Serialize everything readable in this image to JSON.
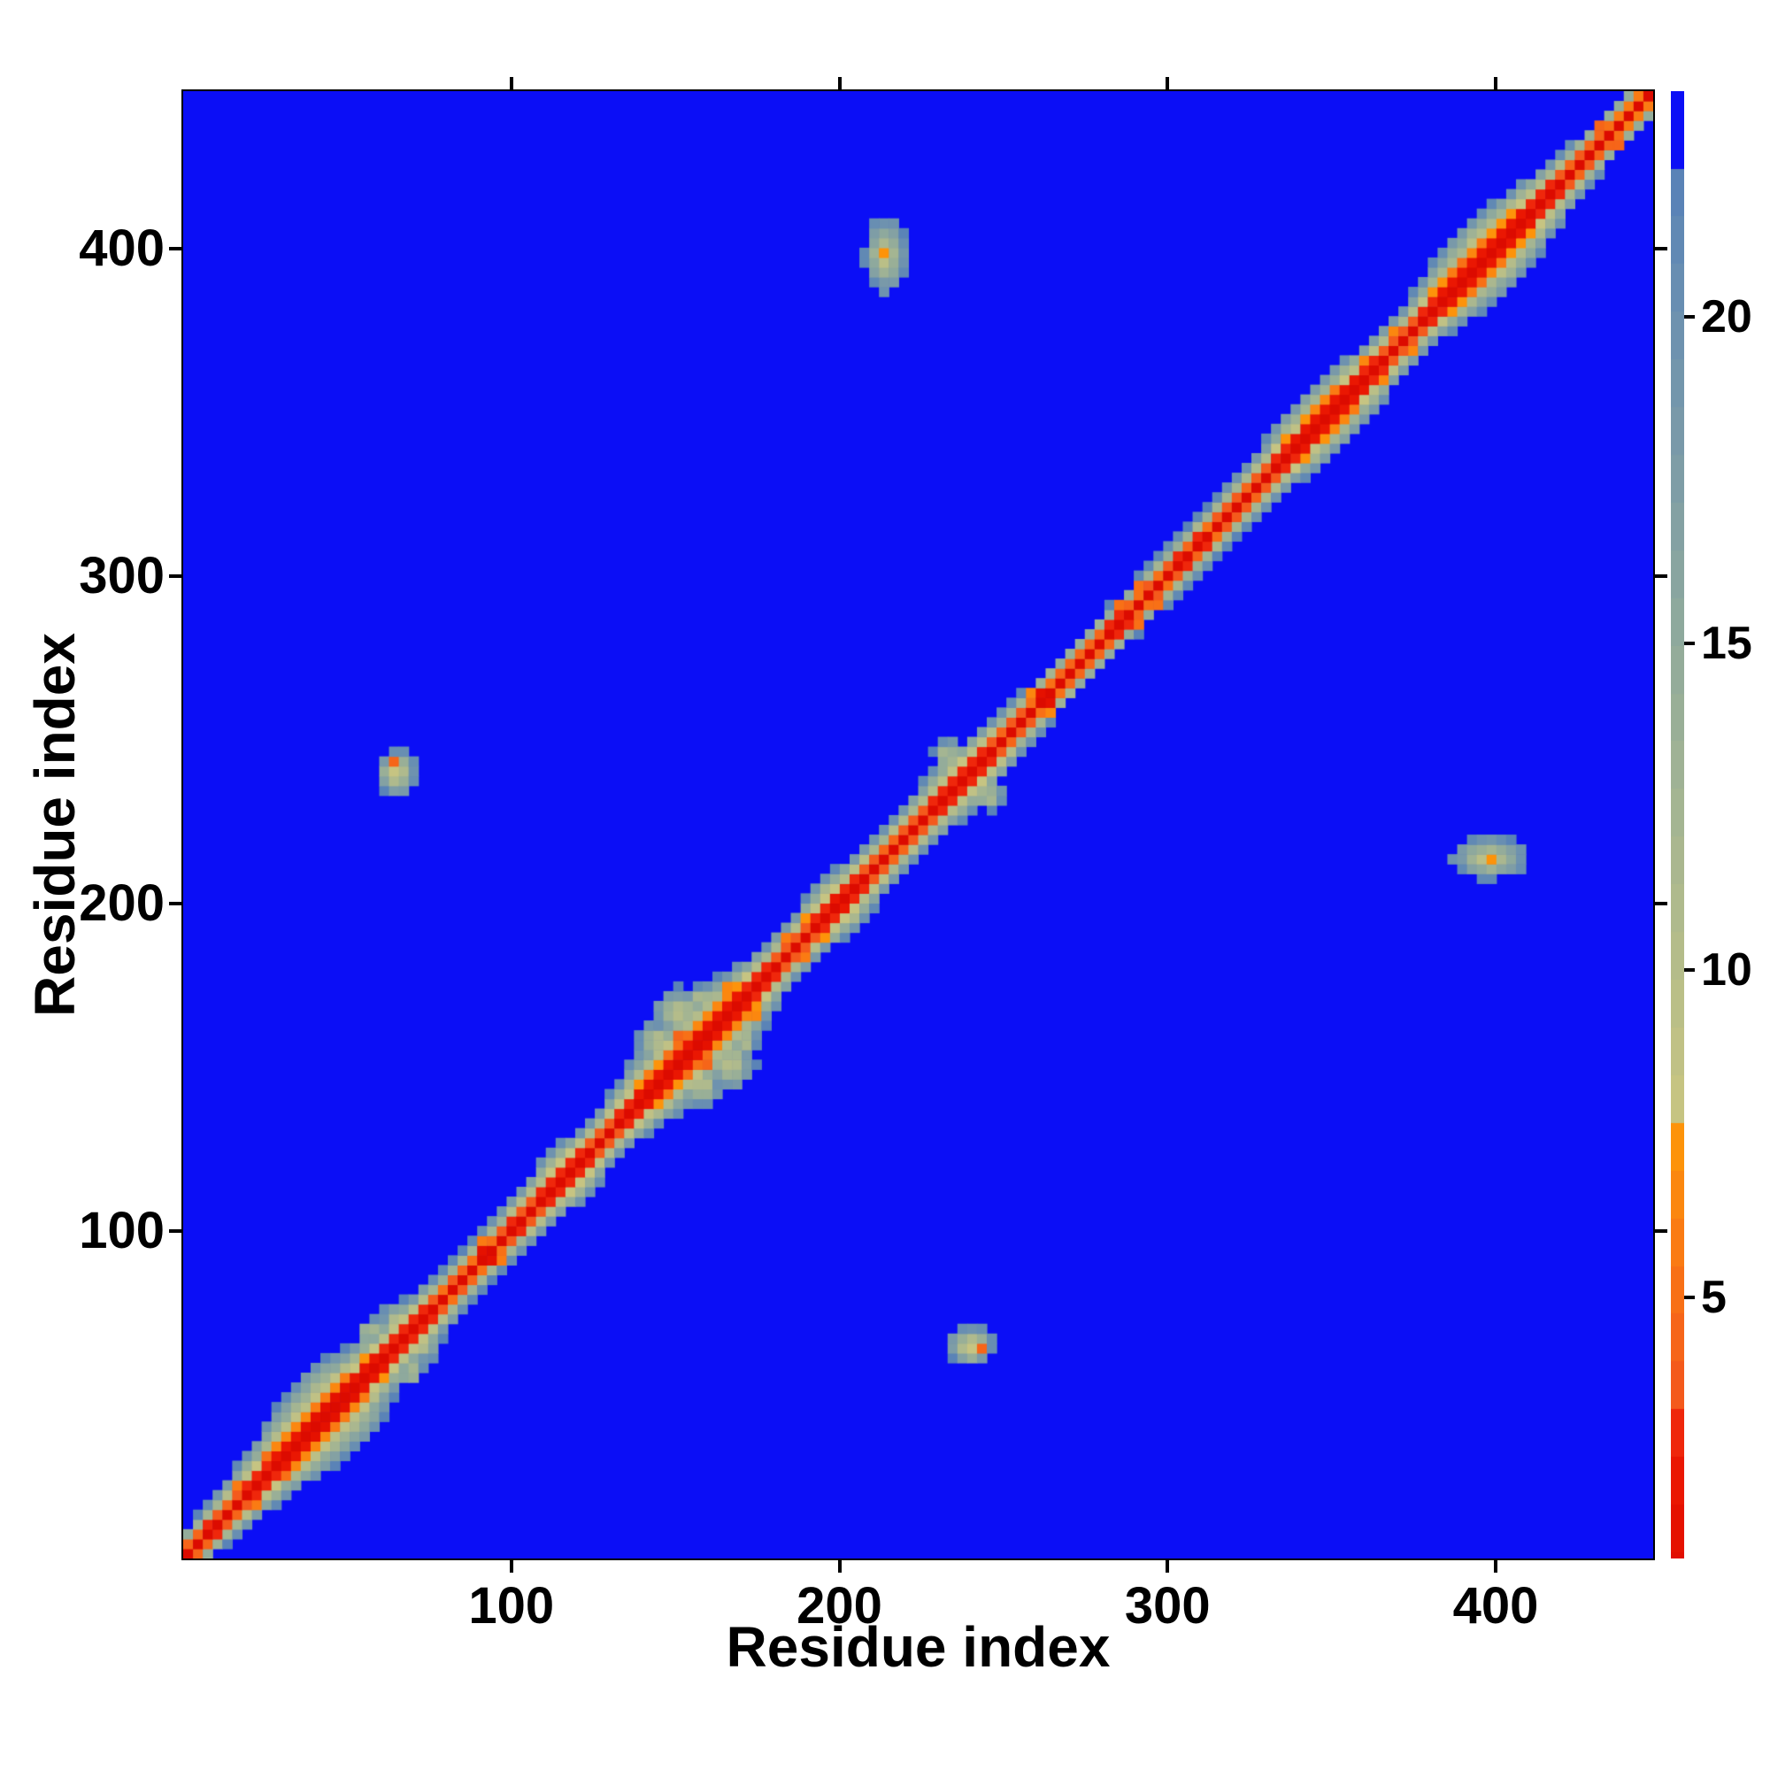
{
  "chart_data": {
    "type": "heatmap",
    "title": "",
    "xlabel": "Residue index",
    "ylabel": "Residue index",
    "x_range": [
      0,
      448
    ],
    "y_range": [
      0,
      448
    ],
    "x_ticks": [
      100,
      200,
      300,
      400
    ],
    "y_ticks": [
      100,
      200,
      300,
      400
    ],
    "grid_on": false,
    "legend": "colorbar-right",
    "value_max": 23.5,
    "grid_cells": 150,
    "symmetric": true,
    "colorbar": {
      "vmin": 1.0,
      "vmax": 23.45,
      "ticks": [
        5,
        10,
        15,
        20
      ],
      "value_quantum": 0.73
    },
    "colormap_stops": [
      {
        "v": 0.0,
        "c": "#dc0b00"
      },
      {
        "v": 2.0,
        "c": "#e91300"
      },
      {
        "v": 3.49,
        "c": "#f23312"
      },
      {
        "v": 3.5,
        "c": "#f4581d"
      },
      {
        "v": 6.0,
        "c": "#fa7d12"
      },
      {
        "v": 7.99,
        "c": "#fe9f06"
      },
      {
        "v": 8.0,
        "c": "#c6c482"
      },
      {
        "v": 10.5,
        "c": "#b2bb8b"
      },
      {
        "v": 13.0,
        "c": "#a0b394"
      },
      {
        "v": 15.5,
        "c": "#8da89e"
      },
      {
        "v": 18.0,
        "c": "#7b9aa8"
      },
      {
        "v": 20.2,
        "c": "#6a90b1"
      },
      {
        "v": 22.29,
        "c": "#5680b8"
      },
      {
        "v": 22.3,
        "c": "#0b0ef6"
      },
      {
        "v": 23.5,
        "c": "#0b0ef6"
      }
    ],
    "background_color": "#0b0ef6",
    "diagonal_band": {
      "offset": 1.6,
      "width_profile": [
        [
          0,
          7
        ],
        [
          15,
          9
        ],
        [
          28,
          13
        ],
        [
          38,
          18
        ],
        [
          48,
          20
        ],
        [
          56,
          14
        ],
        [
          64,
          12
        ],
        [
          72,
          11
        ],
        [
          82,
          8
        ],
        [
          95,
          8
        ],
        [
          105,
          9
        ],
        [
          112,
          11
        ],
        [
          118,
          13
        ],
        [
          126,
          9
        ],
        [
          134,
          10
        ],
        [
          142,
          14
        ],
        [
          150,
          17
        ],
        [
          158,
          18
        ],
        [
          166,
          16
        ],
        [
          174,
          12
        ],
        [
          182,
          9
        ],
        [
          192,
          10
        ],
        [
          200,
          13
        ],
        [
          208,
          10
        ],
        [
          215,
          8.5
        ],
        [
          228,
          10
        ],
        [
          238,
          13
        ],
        [
          246,
          10
        ],
        [
          256,
          8
        ],
        [
          270,
          7.5
        ],
        [
          285,
          7.5
        ],
        [
          300,
          8
        ],
        [
          315,
          8
        ],
        [
          330,
          9
        ],
        [
          341,
          13
        ],
        [
          350,
          14
        ],
        [
          358,
          13
        ],
        [
          366,
          10
        ],
        [
          375,
          9
        ],
        [
          383,
          12
        ],
        [
          392,
          16
        ],
        [
          400,
          17
        ],
        [
          408,
          14
        ],
        [
          418,
          10
        ],
        [
          428,
          8
        ],
        [
          438,
          7
        ],
        [
          448,
          7
        ]
      ]
    },
    "off_diagonal_contacts": [
      {
        "x": 214,
        "y": 398,
        "rx": 7,
        "ry": 13,
        "core": 5.5
      },
      {
        "x": 65,
        "y": 240,
        "rx": 7,
        "ry": 8,
        "core": 4.5
      },
      {
        "x": 151,
        "y": 167,
        "rx": 9,
        "ry": 8,
        "core": 6.5
      },
      {
        "x": 144,
        "y": 158,
        "rx": 7,
        "ry": 7,
        "core": 7
      },
      {
        "x": 158,
        "y": 171,
        "rx": 6,
        "ry": 5,
        "core": 8
      },
      {
        "x": 57,
        "y": 69,
        "rx": 5,
        "ry": 5,
        "core": 8
      },
      {
        "x": 64,
        "y": 74,
        "rx": 4,
        "ry": 4,
        "core": 8.5
      },
      {
        "x": 116,
        "y": 121,
        "rx": 5,
        "ry": 5,
        "core": 6
      },
      {
        "x": 197,
        "y": 204,
        "rx": 5,
        "ry": 5,
        "core": 5.5
      },
      {
        "x": 233,
        "y": 245,
        "rx": 5,
        "ry": 6,
        "core": 7
      }
    ]
  }
}
